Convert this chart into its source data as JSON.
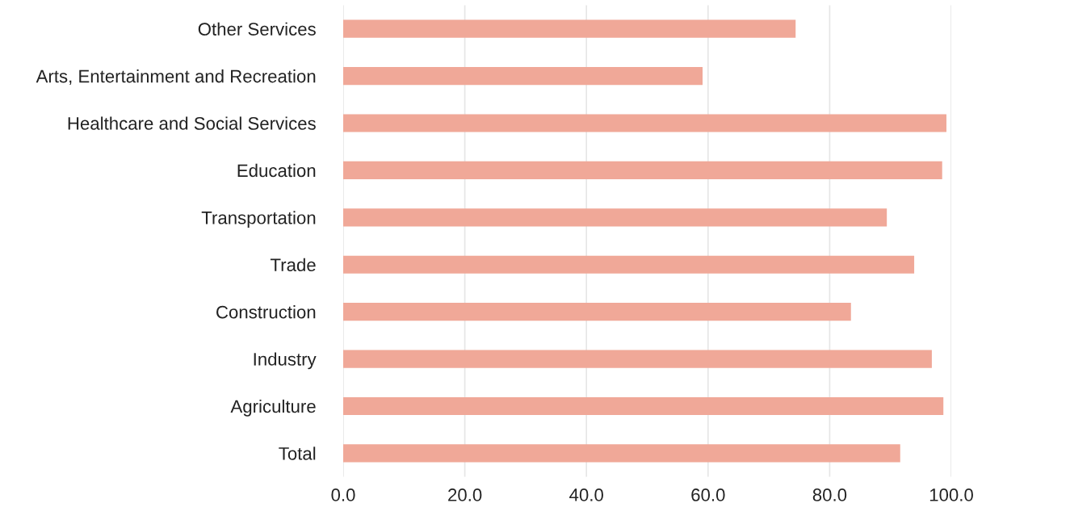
{
  "chart_data": {
    "type": "bar",
    "orientation": "horizontal",
    "categories": [
      "Other Services",
      "Arts, Entertainment and Recreation",
      "Healthcare and Social Services",
      "Education",
      "Transportation",
      "Trade",
      "Construction",
      "Industry",
      "Agriculture",
      "Total"
    ],
    "values": [
      74.4,
      59.1,
      99.2,
      98.5,
      89.4,
      93.9,
      83.5,
      96.8,
      98.7,
      91.6
    ],
    "color": "#f0a898",
    "xlim": [
      0,
      100
    ],
    "xticks": [
      {
        "value": 0,
        "label": "0.0"
      },
      {
        "value": 20,
        "label": "20.0"
      },
      {
        "value": 40,
        "label": "40.0"
      },
      {
        "value": 60,
        "label": "60.0"
      },
      {
        "value": 80,
        "label": "80.0"
      },
      {
        "value": 100,
        "label": "100.0"
      }
    ],
    "grid": "x"
  }
}
